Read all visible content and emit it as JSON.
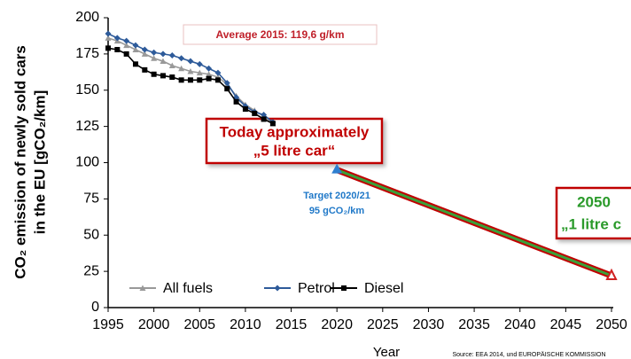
{
  "chart_data": {
    "type": "line",
    "y_label_lines": [
      "CO₂ emission of newly sold cars",
      "in the EU  [gCO₂/km]"
    ],
    "x_label": "Year",
    "source": "Source: EEA 2014, und EUROPÄISCHE KOMMISSION",
    "x": [
      1995,
      1996,
      1997,
      1998,
      1999,
      2000,
      2001,
      2002,
      2003,
      2004,
      2005,
      2006,
      2007,
      2008,
      2009,
      2010,
      2011,
      2012,
      2013
    ],
    "series": [
      {
        "name": "All fuels",
        "color": "#999999",
        "marker": "triangle",
        "values": [
          186,
          184,
          181,
          178,
          175,
          172,
          170,
          167,
          165,
          163,
          162,
          161,
          159,
          154,
          146,
          140,
          136,
          132,
          127
        ]
      },
      {
        "name": "Petrol",
        "color": "#2e5b9a",
        "marker": "diamond",
        "values": [
          189,
          186,
          184,
          181,
          178,
          176,
          175,
          174,
          172,
          170,
          168,
          165,
          162,
          155,
          145,
          139,
          135,
          133,
          128
        ]
      },
      {
        "name": "Diesel",
        "color": "#000000",
        "marker": "square",
        "values": [
          179,
          178,
          175,
          168,
          164,
          161,
          160,
          159,
          157,
          157,
          157,
          158,
          157,
          151,
          142,
          137,
          134,
          130,
          127
        ]
      }
    ],
    "xlim": [
      1995,
      2050
    ],
    "ylim": [
      0,
      200
    ],
    "xticks": [
      1995,
      2000,
      2005,
      2010,
      2015,
      2020,
      2025,
      2030,
      2035,
      2040,
      2045,
      2050
    ],
    "yticks": [
      0,
      25,
      50,
      75,
      100,
      125,
      150,
      175,
      200
    ],
    "grid": false,
    "legend": "bottom-left",
    "annotations": {
      "average": "Average 2015: 119,6 g/km",
      "today": [
        "Today approximately",
        "„5 litre car“"
      ],
      "target_text": [
        "Target 2020/21",
        "95 gCO₂/km"
      ],
      "target": {
        "x": 2020,
        "y": 95
      },
      "goal_text": [
        "2050",
        "„1 litre c"
      ],
      "arrow": {
        "x": [
          2020,
          2050
        ],
        "y": [
          95,
          22
        ]
      }
    }
  }
}
